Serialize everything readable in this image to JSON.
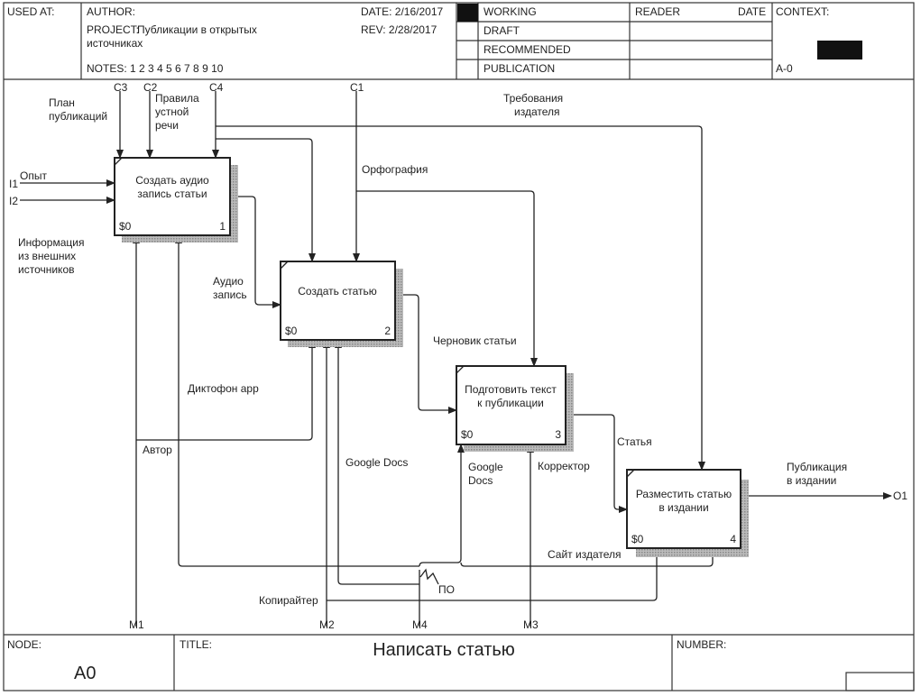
{
  "header": {
    "used_at": "USED AT:",
    "author": "AUTHOR:",
    "project_label": "PROJECT:",
    "project_line1": "Публикации в открытых",
    "project_line2": "источниках",
    "notes": "NOTES:  1  2  3  4  5  6  7  8  9  10",
    "date": "DATE:  2/16/2017",
    "rev": "REV:    2/28/2017",
    "status": [
      "WORKING",
      "DRAFT",
      "RECOMMENDED",
      "PUBLICATION"
    ],
    "status_selected": "WORKING",
    "reader": "READER",
    "reader_date": "DATE",
    "context": "CONTEXT:",
    "context_node": "A-0"
  },
  "boxes": [
    {
      "line1": "Создать аудио",
      "line2": "запись статьи",
      "cost": "$0",
      "num": "1"
    },
    {
      "line1": "Создать статью",
      "line2": "",
      "cost": "$0",
      "num": "2"
    },
    {
      "line1": "Подготовить текст",
      "line2": "к публикации",
      "cost": "$0",
      "num": "3"
    },
    {
      "line1": "Разместить статью",
      "line2": "в издании",
      "cost": "$0",
      "num": "4"
    }
  ],
  "tunnels": {
    "C1": "C1",
    "C2": "C2",
    "C3": "C3",
    "C4": "C4",
    "I1": "I1",
    "I2": "I2",
    "O1": "O1",
    "M1": "M1",
    "M2": "M2",
    "M3": "M3",
    "M4": "M4"
  },
  "labels": {
    "plan": [
      "План",
      "публикаций"
    ],
    "rules": [
      "Правила",
      "устной",
      "речи"
    ],
    "requirements": [
      "Требования",
      "издателя"
    ],
    "spelling": "Орфография",
    "experience": "Опыт",
    "info": [
      "Информация",
      "из внешних",
      "источников"
    ],
    "audio": [
      "Аудио",
      "запись"
    ],
    "draft": "Черновик статьи",
    "dictaphone": "Диктофон app",
    "author": "Автор",
    "gdocs1": "Google Docs",
    "gdocs2": [
      "Google",
      "Docs"
    ],
    "corrector": "Корректор",
    "article": "Статья",
    "publication": [
      "Публикация",
      "в издании"
    ],
    "site": "Сайт издателя",
    "software": "ПО",
    "copywriter": "Копирайтер"
  },
  "footer": {
    "node_label": "NODE:",
    "node": "A0",
    "title_label": "TITLE:",
    "title": "Написать статью",
    "number_label": "NUMBER:"
  }
}
